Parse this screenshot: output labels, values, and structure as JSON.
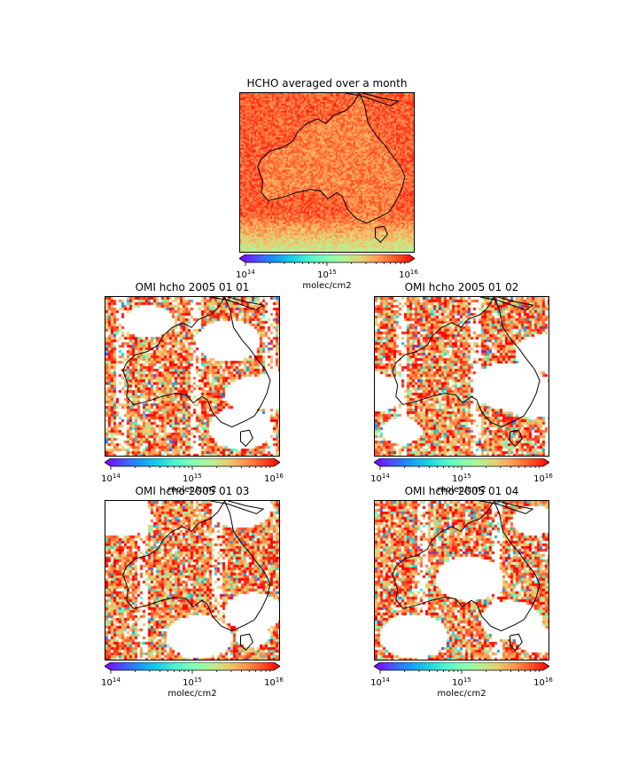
{
  "chart_data": [
    {
      "type": "heatmap",
      "title": "HCHO averaged over a month",
      "colorbar": {
        "label": "molec/cm2",
        "scale": "log",
        "range": [
          100000000000000.0,
          1e+16
        ],
        "tick_labels": [
          {
            "base": "10",
            "exp": "14"
          },
          {
            "base": "10",
            "exp": "15"
          },
          {
            "base": "10",
            "exp": "16"
          }
        ],
        "colormap": "rainbow",
        "extend": "both"
      },
      "coverage": "full",
      "region": "Australia"
    },
    {
      "type": "heatmap",
      "title": "OMI hcho 2005 01 01",
      "colorbar": {
        "label": "molec/cm2",
        "scale": "log",
        "range": [
          100000000000000.0,
          1e+16
        ],
        "tick_labels": [
          {
            "base": "10",
            "exp": "14"
          },
          {
            "base": "10",
            "exp": "15"
          },
          {
            "base": "10",
            "exp": "16"
          }
        ],
        "colormap": "rainbow",
        "extend": "both"
      },
      "coverage": "partial",
      "region": "Australia"
    },
    {
      "type": "heatmap",
      "title": "OMI hcho 2005 01 02",
      "colorbar": {
        "label": "molec/cm2",
        "scale": "log",
        "range": [
          100000000000000.0,
          1e+16
        ],
        "tick_labels": [
          {
            "base": "10",
            "exp": "14"
          },
          {
            "base": "10",
            "exp": "15"
          },
          {
            "base": "10",
            "exp": "16"
          }
        ],
        "colormap": "rainbow",
        "extend": "both"
      },
      "coverage": "partial",
      "region": "Australia"
    },
    {
      "type": "heatmap",
      "title": "OMI hcho 2005 01 03",
      "colorbar": {
        "label": "molec/cm2",
        "scale": "log",
        "range": [
          100000000000000.0,
          1e+16
        ],
        "tick_labels": [
          {
            "base": "10",
            "exp": "14"
          },
          {
            "base": "10",
            "exp": "15"
          },
          {
            "base": "10",
            "exp": "16"
          }
        ],
        "colormap": "rainbow",
        "extend": "both"
      },
      "coverage": "partial",
      "region": "Australia"
    },
    {
      "type": "heatmap",
      "title": "OMI hcho 2005 01 04",
      "colorbar": {
        "label": "molec/cm2",
        "scale": "log",
        "range": [
          100000000000000.0,
          1e+16
        ],
        "tick_labels": [
          {
            "base": "10",
            "exp": "14"
          },
          {
            "base": "10",
            "exp": "15"
          },
          {
            "base": "10",
            "exp": "16"
          }
        ],
        "colormap": "rainbow",
        "extend": "both"
      },
      "coverage": "partial",
      "region": "Australia"
    }
  ]
}
